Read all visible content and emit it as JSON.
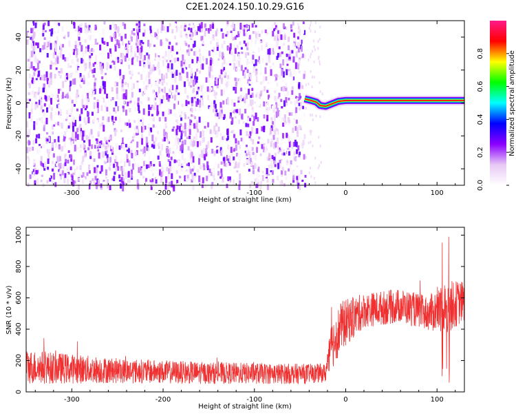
{
  "title": "C2E1.2024.150.10.29.G16",
  "chart_data": [
    {
      "type": "heatmap",
      "xlabel": "Height of straight line (km)",
      "ylabel": "Frequency (Hz)",
      "xlim": [
        -350,
        130
      ],
      "ylim": [
        -50,
        50
      ],
      "xticks": [
        -300,
        -200,
        -100,
        0,
        100
      ],
      "yticks": [
        -40,
        -20,
        0,
        20,
        40
      ],
      "colorbar": {
        "label": "Normalized spectral amplitude",
        "range": [
          0,
          1
        ],
        "ticks": [
          0.0,
          0.2,
          0.4,
          0.6,
          0.8
        ],
        "colormap": [
          "#ffffff",
          "#e7c8f5",
          "#8b00ff",
          "#0000ff",
          "#00ffff",
          "#00ff00",
          "#ffff00",
          "#ff0000",
          "#ff1a8a"
        ]
      },
      "noise_region": {
        "x_range": [
          -350,
          -45
        ],
        "y_range": [
          -50,
          50
        ],
        "amplitude": [
          0.0,
          0.3
        ]
      },
      "signal_track": [
        {
          "x": -45,
          "y": 2.5
        },
        {
          "x": -38,
          "y": 1.5
        },
        {
          "x": -32,
          "y": 0.5
        },
        {
          "x": -28,
          "y": -1.5
        },
        {
          "x": -22,
          "y": -2.0
        },
        {
          "x": -15,
          "y": -0.5
        },
        {
          "x": -8,
          "y": 1.0
        },
        {
          "x": 0,
          "y": 1.5
        },
        {
          "x": 50,
          "y": 1.5
        },
        {
          "x": 100,
          "y": 1.5
        },
        {
          "x": 130,
          "y": 1.5
        }
      ],
      "signal_amplitude": 0.9
    },
    {
      "type": "line",
      "xlabel": "Height of straight line (km)",
      "ylabel": "SNR (10 * v/v)",
      "xlim": [
        -350,
        130
      ],
      "ylim": [
        0,
        1050
      ],
      "xticks": [
        -300,
        -200,
        -100,
        0,
        100
      ],
      "yticks": [
        0,
        200,
        400,
        600,
        800,
        1000
      ],
      "color": "#f03030",
      "envelope": [
        {
          "x": -350,
          "y": 160,
          "spread": 110
        },
        {
          "x": -250,
          "y": 135,
          "spread": 80
        },
        {
          "x": -150,
          "y": 120,
          "spread": 70
        },
        {
          "x": -50,
          "y": 115,
          "spread": 65
        },
        {
          "x": -22,
          "y": 120,
          "spread": 60
        },
        {
          "x": -15,
          "y": 300,
          "spread": 160
        },
        {
          "x": -5,
          "y": 420,
          "spread": 160
        },
        {
          "x": 20,
          "y": 520,
          "spread": 110
        },
        {
          "x": 60,
          "y": 550,
          "spread": 110
        },
        {
          "x": 90,
          "y": 500,
          "spread": 110
        },
        {
          "x": 110,
          "y": 540,
          "spread": 170
        },
        {
          "x": 130,
          "y": 580,
          "spread": 130
        }
      ],
      "peak_max": 1040
    }
  ]
}
